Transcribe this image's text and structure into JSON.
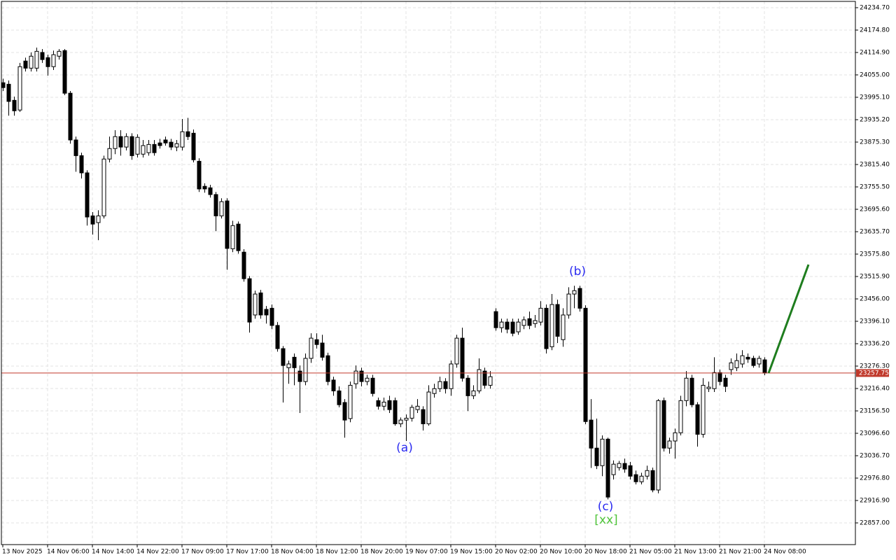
{
  "chart_data": {
    "type": "candlestick",
    "categories": [
      "13 Nov 2025",
      null,
      null,
      null,
      null,
      null,
      null,
      null,
      "14 Nov 06:00",
      null,
      null,
      null,
      null,
      null,
      null,
      null,
      "14 Nov 14:00",
      null,
      null,
      null,
      null,
      null,
      null,
      null,
      "14 Nov 22:00",
      null,
      null,
      null,
      null,
      null,
      null,
      null,
      "17 Nov 09:00",
      null,
      null,
      null,
      null,
      null,
      null,
      null,
      "17 Nov 17:00",
      null,
      null,
      null,
      null,
      null,
      null,
      null,
      "18 Nov 04:00",
      null,
      null,
      null,
      null,
      null,
      null,
      null,
      "18 Nov 12:00",
      null,
      null,
      null,
      null,
      null,
      null,
      null,
      "18 Nov 20:00",
      null,
      null,
      null,
      null,
      null,
      null,
      null,
      "19 Nov 07:00",
      null,
      null,
      null,
      null,
      null,
      null,
      null,
      "19 Nov 15:00",
      null,
      null,
      null,
      null,
      null,
      null,
      null,
      "20 Nov 02:00",
      null,
      null,
      null,
      null,
      null,
      null,
      null,
      "20 Nov 10:00",
      null,
      null,
      null,
      null,
      null,
      null,
      null,
      "20 Nov 18:00",
      null,
      null,
      null,
      null,
      null,
      null,
      null,
      "21 Nov 05:00",
      null,
      null,
      null,
      null,
      null,
      null,
      null,
      "21 Nov 13:00",
      null,
      null,
      null,
      null,
      null,
      null,
      null,
      "21 Nov 21:00",
      null,
      null,
      null,
      null,
      null,
      null,
      null,
      "24 Nov 08:00"
    ],
    "open": [
      24034,
      24030,
      23987,
      23961,
      24092,
      24073,
      24073,
      24115,
      24101,
      24077,
      24105,
      24120,
      24006,
      23881,
      23839,
      23793,
      23678,
      23660,
      23678,
      23830,
      23858,
      23890,
      23862,
      23890,
      23843,
      23843,
      23847,
      23869,
      23873,
      23881,
      23875,
      23862,
      23862,
      23903,
      23899,
      23824,
      23757,
      23753,
      23735,
      23678,
      23718,
      23590,
      23656,
      23581,
      23510,
      23413,
      23472,
      23428,
      23431,
      23385,
      23323,
      23272,
      23300,
      23263,
      23235,
      23297,
      23347,
      23338,
      23304,
      23239,
      23210,
      23179,
      23136,
      23229,
      23263,
      23235,
      23244,
      23184,
      23169,
      23184,
      23184,
      23122,
      23132,
      23137,
      23160,
      23160,
      23122,
      23203,
      23216,
      23235,
      23216,
      23282,
      23351,
      23244,
      23197,
      23210,
      23263,
      23225,
      23422,
      23379,
      23394,
      23394,
      23368,
      23385,
      23403,
      23390,
      23394,
      23431,
      23328,
      23441,
      23347,
      23413,
      23469,
      23484,
      23431,
      23132,
      23057,
      23010,
      23081,
      22986,
      23005,
      23016,
      23010,
      22986,
      22967,
      22982,
      22997,
      22945,
      23184,
      23057,
      23076,
      23098,
      23184,
      23244,
      23173,
      23094,
      23216,
      23216,
      23259,
      23244,
      23267,
      23272,
      23282,
      23300,
      23297,
      23282,
      23293
    ],
    "high": [
      24045,
      24040,
      23997,
      24087,
      24101,
      24115,
      24128,
      24124,
      24109,
      24120,
      24124,
      24124,
      24012,
      23890,
      23847,
      23800,
      23688,
      23693,
      23839,
      23890,
      23907,
      23907,
      23899,
      23899,
      23896,
      23881,
      23881,
      23881,
      23884,
      23890,
      23884,
      23881,
      23937,
      23940,
      23909,
      23832,
      23765,
      23761,
      23742,
      23725,
      23725,
      23665,
      23663,
      23589,
      23517,
      23478,
      23480,
      23437,
      23441,
      23394,
      23330,
      23291,
      23310,
      23278,
      23310,
      23364,
      23364,
      23360,
      23312,
      23248,
      23222,
      23188,
      23235,
      23278,
      23272,
      23253,
      23253,
      23192,
      23192,
      23197,
      23192,
      23139,
      23147,
      23173,
      23188,
      23169,
      23225,
      23229,
      23248,
      23244,
      23291,
      23360,
      23379,
      23252,
      23225,
      23297,
      23272,
      23263,
      23431,
      23403,
      23403,
      23403,
      23403,
      23409,
      23422,
      23413,
      23450,
      23441,
      23469,
      23454,
      23431,
      23487,
      23491,
      23491,
      23439,
      23188,
      23136,
      23091,
      23085,
      23024,
      23023,
      23029,
      23020,
      22997,
      22991,
      23010,
      23005,
      23188,
      23192,
      23085,
      23109,
      23197,
      23263,
      23253,
      23180,
      23244,
      23235,
      23300,
      23267,
      23253,
      23297,
      23310,
      23319,
      23310,
      23304,
      23304,
      23300
    ],
    "low": [
      24012,
      23946,
      23946,
      23956,
      24064,
      24064,
      24064,
      24087,
      24053,
      24068,
      24096,
      24001,
      23871,
      23796,
      23778,
      23652,
      23628,
      23613,
      23671,
      23821,
      23843,
      23839,
      23853,
      23828,
      23834,
      23834,
      23839,
      23839,
      23858,
      23866,
      23854,
      23851,
      23853,
      23881,
      23821,
      23742,
      23740,
      23727,
      23637,
      23671,
      23534,
      23581,
      23577,
      23502,
      23366,
      23403,
      23403,
      23390,
      23375,
      23315,
      23179,
      23229,
      23225,
      23151,
      23225,
      23285,
      23323,
      23291,
      23225,
      23197,
      23166,
      23085,
      23126,
      23216,
      23222,
      23225,
      23195,
      23160,
      23158,
      23151,
      23117,
      23113,
      23076,
      23128,
      23151,
      23104,
      23117,
      23192,
      23207,
      23203,
      23197,
      23272,
      23235,
      23156,
      23188,
      23203,
      23216,
      23216,
      23371,
      23366,
      23364,
      23356,
      23360,
      23375,
      23375,
      23379,
      23385,
      23310,
      23319,
      23338,
      23328,
      23403,
      23431,
      23422,
      23121,
      23004,
      23001,
      22982,
      22920,
      22973,
      22997,
      22991,
      22973,
      22960,
      22960,
      22973,
      22939,
      22936,
      23048,
      23042,
      23029,
      23091,
      23169,
      23166,
      23061,
      23085,
      23207,
      23207,
      23225,
      23207,
      23253,
      23263,
      23272,
      23285,
      23272,
      23272,
      23252
    ],
    "close": [
      24021,
      23984,
      23959,
      24077,
      24073,
      24105,
      24118,
      24096,
      24077,
      24109,
      24118,
      24006,
      23881,
      23839,
      23793,
      23675,
      23656,
      23678,
      23830,
      23858,
      23890,
      23862,
      23890,
      23839,
      23888,
      23866,
      23869,
      23847,
      23866,
      23873,
      23862,
      23871,
      23903,
      23890,
      23828,
      23750,
      23750,
      23735,
      23678,
      23716,
      23591,
      23652,
      23585,
      23510,
      23394,
      23469,
      23413,
      23413,
      23385,
      23323,
      23278,
      23282,
      23272,
      23235,
      23297,
      23351,
      23334,
      23300,
      23235,
      23210,
      23173,
      23132,
      23225,
      23263,
      23235,
      23244,
      23203,
      23169,
      23180,
      23160,
      23122,
      23132,
      23137,
      23166,
      23169,
      23122,
      23207,
      23216,
      23235,
      23216,
      23282,
      23351,
      23244,
      23197,
      23210,
      23267,
      23225,
      23248,
      23379,
      23394,
      23375,
      23364,
      23394,
      23400,
      23385,
      23398,
      23431,
      23323,
      23441,
      23356,
      23413,
      23469,
      23478,
      23431,
      23128,
      23057,
      23010,
      23081,
      22926,
      23014,
      23016,
      23001,
      22982,
      22967,
      22982,
      22997,
      22945,
      23184,
      23057,
      23076,
      23098,
      23184,
      23244,
      23173,
      23094,
      23225,
      23220,
      23259,
      23235,
      23222,
      23285,
      23291,
      23304,
      23295,
      23278,
      23297,
      23257.75
    ],
    "up_color": "#ffffff",
    "down_color": "#000000",
    "outline_color": "#000000",
    "current_price": 23257.75,
    "current_price_color": "#c0392b",
    "ylim": [
      22799,
      24251.5
    ],
    "yticks": [
      {
        "value": 24234.7,
        "label": "24234.70"
      },
      {
        "value": 24174.8,
        "label": "24174.80"
      },
      {
        "value": 24114.9,
        "label": "24114.90"
      },
      {
        "value": 24055,
        "label": "24055.00"
      },
      {
        "value": 23995.1,
        "label": "23995.10"
      },
      {
        "value": 23935.2,
        "label": "23935.20"
      },
      {
        "value": 23875.3,
        "label": "23875.30"
      },
      {
        "value": 23815.4,
        "label": "23815.40"
      },
      {
        "value": 23755.5,
        "label": "23755.50"
      },
      {
        "value": 23695.6,
        "label": "23695.60"
      },
      {
        "value": 23635.7,
        "label": "23635.70"
      },
      {
        "value": 23575.8,
        "label": "23575.80"
      },
      {
        "value": 23515.9,
        "label": "23515.90"
      },
      {
        "value": 23456,
        "label": "23456.00"
      },
      {
        "value": 23396.1,
        "label": "23396.10"
      },
      {
        "value": 23336.2,
        "label": "23336.20"
      },
      {
        "value": 23276.3,
        "label": "23276.30"
      },
      {
        "value": 23216.4,
        "label": "23216.40"
      },
      {
        "value": 23156.5,
        "label": "23156.50"
      },
      {
        "value": 23096.6,
        "label": "23096.60"
      },
      {
        "value": 23036.7,
        "label": "23036.70"
      },
      {
        "value": 22976.8,
        "label": "22976.80"
      },
      {
        "value": 22916.9,
        "label": "22916.90"
      },
      {
        "value": 22857,
        "label": "22857.00"
      }
    ],
    "grid": true,
    "annotations": [
      "(a)",
      "(b)",
      "(c)",
      "[xx]"
    ]
  }
}
